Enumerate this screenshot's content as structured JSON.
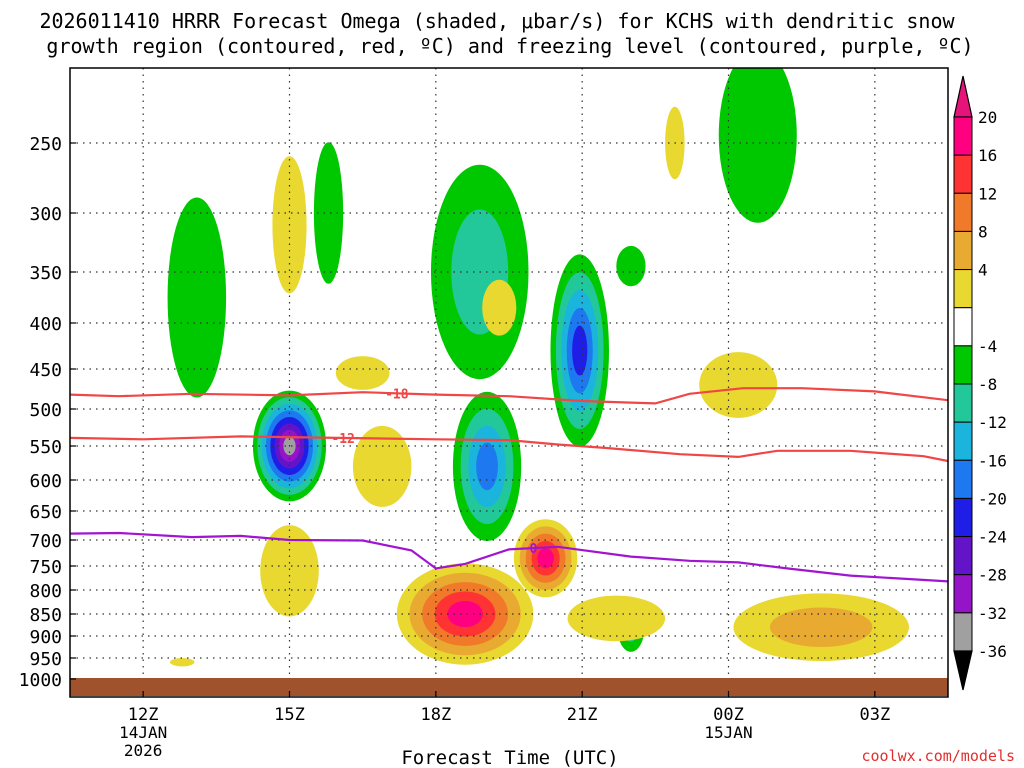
{
  "chart_data": {
    "type": "heatmap",
    "title_line1": "2026011410 HRRR Forecast Omega (shaded, μbar/s) for KCHS with dendritic snow",
    "title_line2": "growth region (contoured, red, ºC) and freezing level (contoured, purple, ºC)",
    "xlabel": "Forecast Time (UTC)",
    "ylabel": "",
    "credit": "coolwx.com/models",
    "xlim_hours": [
      10.5,
      28.5
    ],
    "ylim_hpa": [
      1000,
      200
    ],
    "x_ticks": [
      {
        "hour": 12,
        "label": "12Z",
        "sub": [
          "14JAN",
          "2026"
        ]
      },
      {
        "hour": 15,
        "label": "15Z",
        "sub": []
      },
      {
        "hour": 18,
        "label": "18Z",
        "sub": []
      },
      {
        "hour": 21,
        "label": "21Z",
        "sub": []
      },
      {
        "hour": 24,
        "label": "00Z",
        "sub": [
          "15JAN"
        ]
      },
      {
        "hour": 27,
        "label": "03Z",
        "sub": []
      }
    ],
    "y_ticks": [
      250,
      300,
      350,
      400,
      450,
      500,
      550,
      600,
      650,
      700,
      750,
      800,
      850,
      900,
      950,
      1000
    ],
    "colorbar": {
      "levels": [
        -36,
        -32,
        -28,
        -24,
        -20,
        -16,
        -12,
        -8,
        -4,
        4,
        8,
        12,
        16,
        20
      ],
      "labels": [
        "20",
        "16",
        "12",
        "8",
        "4",
        "-4",
        "-8",
        "-12",
        "-16",
        "-20",
        "-24",
        "-28",
        "-32",
        "-36"
      ],
      "colors": [
        "#ff0080",
        "#ff3333",
        "#f07a2a",
        "#e8aa30",
        "#e8d830",
        "#ffffff",
        "#00c800",
        "#22c89a",
        "#1ab4dc",
        "#1e78f0",
        "#1e1ee6",
        "#6414c8",
        "#9614c8",
        "#a0a0a0"
      ],
      "top_color": "#e6147a",
      "bottom_color": "#000000"
    },
    "ground_color": "#a0522d",
    "series": [
      {
        "name": "-18 C isotherm",
        "color": "#f04646",
        "label": "-18",
        "label_hour": 17.2,
        "points": [
          [
            10.5,
            482
          ],
          [
            11.5,
            484
          ],
          [
            13,
            481
          ],
          [
            15,
            483
          ],
          [
            16.5,
            479
          ],
          [
            18,
            482
          ],
          [
            19.5,
            484
          ],
          [
            21,
            490
          ],
          [
            22,
            492
          ],
          [
            22.5,
            493
          ],
          [
            23.2,
            481
          ],
          [
            24.3,
            474
          ],
          [
            25.5,
            474
          ],
          [
            27,
            478
          ],
          [
            28.5,
            489
          ]
        ]
      },
      {
        "name": "-12 C isotherm",
        "color": "#f04646",
        "label": "-12",
        "label_hour": 16.1,
        "points": [
          [
            10.5,
            539
          ],
          [
            12,
            541
          ],
          [
            14,
            537
          ],
          [
            16,
            539
          ],
          [
            18,
            541
          ],
          [
            19.5,
            542
          ],
          [
            20.5,
            548
          ],
          [
            21.5,
            553
          ],
          [
            23,
            562
          ],
          [
            24.2,
            566
          ],
          [
            25,
            557
          ],
          [
            26.5,
            557
          ],
          [
            28,
            565
          ],
          [
            28.5,
            572
          ]
        ]
      },
      {
        "name": "0 C freezing level",
        "color": "#a014d2",
        "label": "0",
        "label_hour": 20.0,
        "points": [
          [
            10.5,
            689
          ],
          [
            11.5,
            688
          ],
          [
            13,
            695
          ],
          [
            14,
            693
          ],
          [
            15,
            700
          ],
          [
            16.5,
            701
          ],
          [
            17.5,
            720
          ],
          [
            18,
            755
          ],
          [
            18.6,
            746
          ],
          [
            19.5,
            718
          ],
          [
            20.5,
            713
          ],
          [
            22,
            732
          ],
          [
            23.2,
            740
          ],
          [
            24.2,
            743
          ],
          [
            25.2,
            755
          ],
          [
            26.5,
            770
          ],
          [
            28.5,
            782
          ]
        ]
      }
    ],
    "omega_cells": [
      {
        "h": 15,
        "p": 550,
        "rx": 0.75,
        "rd": 78,
        "values": [
          -8,
          -12,
          -16,
          -20,
          -24,
          -28,
          -32,
          -36
        ]
      },
      {
        "h": 20.95,
        "p": 430,
        "rx": 0.6,
        "rd": 105,
        "values": [
          -8,
          -12,
          -16,
          -20,
          -24
        ]
      },
      {
        "h": 19.05,
        "p": 580,
        "rx": 0.7,
        "rd": 110,
        "values": [
          -8,
          -12,
          -16,
          -20
        ]
      },
      {
        "h": 18.9,
        "p": 350,
        "rx": 1.0,
        "rd": 95,
        "values": [
          -8,
          -12
        ]
      },
      {
        "h": 13.1,
        "p": 375,
        "rx": 0.6,
        "rd": 95,
        "values": [
          -8
        ]
      },
      {
        "h": 15.8,
        "p": 300,
        "rx": 0.3,
        "rd": 55,
        "values": [
          -8
        ]
      },
      {
        "h": 24.6,
        "p": 245,
        "rx": 0.8,
        "rd": 80,
        "values": [
          -8
        ]
      },
      {
        "h": 22.0,
        "p": 345,
        "rx": 0.3,
        "rd": 18,
        "values": [
          -8
        ]
      },
      {
        "h": 22.0,
        "p": 880,
        "rx": 0.28,
        "rd": 55,
        "values": [
          -8,
          -12
        ]
      },
      {
        "h": 18.6,
        "p": 850,
        "rx": 1.4,
        "rd": 110,
        "values": [
          4,
          8,
          12,
          16,
          20
        ]
      },
      {
        "h": 20.25,
        "p": 735,
        "rx": 0.65,
        "rd": 75,
        "values": [
          4,
          8,
          12,
          16,
          20
        ]
      },
      {
        "h": 15.0,
        "p": 760,
        "rx": 0.6,
        "rd": 90,
        "values": [
          4
        ]
      },
      {
        "h": 15.0,
        "p": 310,
        "rx": 0.35,
        "rd": 55,
        "values": [
          4
        ]
      },
      {
        "h": 16.9,
        "p": 580,
        "rx": 0.6,
        "rd": 60,
        "values": [
          4
        ]
      },
      {
        "h": 16.5,
        "p": 455,
        "rx": 0.55,
        "rd": 20,
        "values": [
          4
        ]
      },
      {
        "h": 19.3,
        "p": 385,
        "rx": 0.35,
        "rd": 28,
        "values": [
          4
        ]
      },
      {
        "h": 24.2,
        "p": 470,
        "rx": 0.8,
        "rd": 40,
        "values": [
          4
        ]
      },
      {
        "h": 22.9,
        "p": 250,
        "rx": 0.2,
        "rd": 25,
        "values": [
          4
        ]
      },
      {
        "h": 25.9,
        "p": 880,
        "rx": 1.8,
        "rd": 75,
        "values": [
          4,
          8
        ]
      },
      {
        "h": 21.7,
        "p": 860,
        "rx": 1.0,
        "rd": 50,
        "values": [
          4
        ]
      },
      {
        "h": 12.8,
        "p": 960,
        "rx": 0.25,
        "rd": 10,
        "values": [
          4
        ]
      }
    ]
  }
}
